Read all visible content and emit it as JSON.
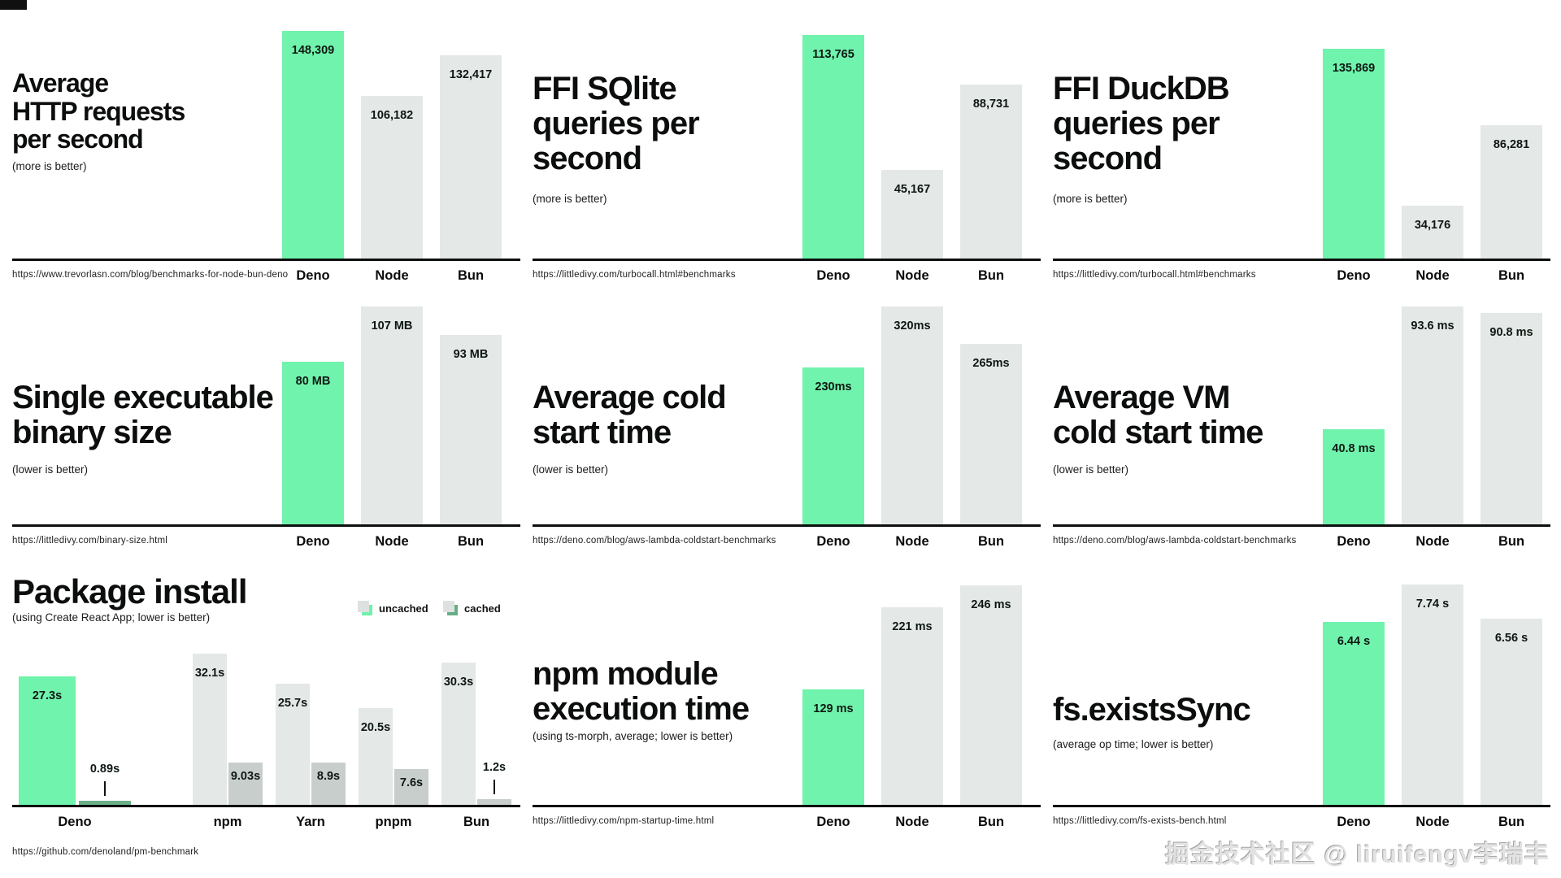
{
  "watermark": "掘金技术社区 @ liruifengv李瑞丰",
  "colors": {
    "accent_green": "#70F3AC",
    "accent_green_dark": "#6AB089",
    "legend_cached_green": "#64AD85",
    "bar_gray": "#E4E8E6",
    "bar_gray_dark": "#C8CECB",
    "axis_black": "#0C0F0D"
  },
  "chart_data": [
    {
      "id": "c1",
      "type": "bar",
      "title_lines": [
        "Average",
        "HTTP requests",
        "per second"
      ],
      "subtitle": "(more is better)",
      "url": "https://www.trevorlasn.com/blog/benchmarks-for-node-bun-deno",
      "categories": [
        "Deno",
        "Node",
        "Bun"
      ],
      "values": [
        148309,
        106182,
        132417
      ],
      "value_labels": [
        "148,309",
        "106,182",
        "132,417"
      ],
      "highlight": "Deno",
      "better": "more",
      "unit": "requests/second"
    },
    {
      "id": "c2",
      "type": "bar",
      "title_lines": [
        "FFI SQlite",
        "queries per",
        "second"
      ],
      "subtitle": "(more is better)",
      "url": "https://littledivy.com/turbocall.html#benchmarks",
      "categories": [
        "Deno",
        "Node",
        "Bun"
      ],
      "values": [
        113765,
        45167,
        88731
      ],
      "value_labels": [
        "113,765",
        "45,167",
        "88,731"
      ],
      "highlight": "Deno",
      "better": "more",
      "unit": "queries/second"
    },
    {
      "id": "c3",
      "type": "bar",
      "title_lines": [
        "FFI DuckDB",
        "queries per",
        "second"
      ],
      "subtitle": "(more is better)",
      "url": "https://littledivy.com/turbocall.html#benchmarks",
      "categories": [
        "Deno",
        "Node",
        "Bun"
      ],
      "values": [
        135869,
        34176,
        86281
      ],
      "value_labels": [
        "135,869",
        "34,176",
        "86,281"
      ],
      "highlight": "Deno",
      "better": "more",
      "unit": "queries/second"
    },
    {
      "id": "c4",
      "type": "bar",
      "title_lines": [
        "Single executable",
        "binary size"
      ],
      "subtitle": "(lower is better)",
      "url": "https://littledivy.com/binary-size.html",
      "categories": [
        "Deno",
        "Node",
        "Bun"
      ],
      "values": [
        80,
        107,
        93
      ],
      "value_labels": [
        "80 MB",
        "107 MB",
        "93 MB"
      ],
      "highlight": "Deno",
      "better": "lower",
      "unit": "MB"
    },
    {
      "id": "c5",
      "type": "bar",
      "title_lines": [
        "Average cold",
        "start time"
      ],
      "subtitle": "(lower is better)",
      "url": "https://deno.com/blog/aws-lambda-coldstart-benchmarks",
      "categories": [
        "Deno",
        "Node",
        "Bun"
      ],
      "values": [
        230,
        320,
        265
      ],
      "value_labels": [
        "230ms",
        "320ms",
        "265ms"
      ],
      "highlight": "Deno",
      "better": "lower",
      "unit": "ms"
    },
    {
      "id": "c6",
      "type": "bar",
      "title_lines": [
        "Average VM",
        "cold start time"
      ],
      "subtitle": "(lower is better)",
      "url": "https://deno.com/blog/aws-lambda-coldstart-benchmarks",
      "categories": [
        "Deno",
        "Node",
        "Bun"
      ],
      "values": [
        40.8,
        93.6,
        90.8
      ],
      "value_labels": [
        "40.8 ms",
        "93.6 ms",
        "90.8 ms"
      ],
      "highlight": "Deno",
      "better": "lower",
      "unit": "ms"
    },
    {
      "id": "c7",
      "type": "bar",
      "grouped": true,
      "title_lines": [
        "Package install"
      ],
      "subtitle": "(using Create React App; lower is better)",
      "url": "https://github.com/denoland/pm-benchmark",
      "legend": [
        "uncached",
        "cached"
      ],
      "categories": [
        "Deno",
        "npm",
        "Yarn",
        "pnpm",
        "Bun"
      ],
      "series": [
        {
          "name": "uncached",
          "values": [
            27.3,
            32.1,
            25.7,
            20.5,
            30.3
          ],
          "value_labels": [
            "27.3s",
            "32.1s",
            "25.7s",
            "20.5s",
            "30.3s"
          ]
        },
        {
          "name": "cached",
          "values": [
            0.89,
            9.03,
            8.9,
            7.6,
            1.2
          ],
          "value_labels": [
            "0.89s",
            "9.03s",
            "8.9s",
            "7.6s",
            "1.2s"
          ]
        }
      ],
      "highlight": "Deno",
      "better": "lower",
      "unit": "s"
    },
    {
      "id": "c8",
      "type": "bar",
      "title_lines": [
        "npm module",
        "execution time"
      ],
      "subtitle": "(using ts-morph, average; lower is better)",
      "url": "https://littledivy.com/npm-startup-time.html",
      "categories": [
        "Deno",
        "Node",
        "Bun"
      ],
      "values": [
        129,
        221,
        246
      ],
      "value_labels": [
        "129 ms",
        "221 ms",
        "246 ms"
      ],
      "highlight": "Deno",
      "better": "lower",
      "unit": "ms"
    },
    {
      "id": "c9",
      "type": "bar",
      "title_lines": [
        "fs.existsSync"
      ],
      "subtitle": "(average op time; lower is better)",
      "url": "https://littledivy.com/fs-exists-bench.html",
      "categories": [
        "Deno",
        "Node",
        "Bun"
      ],
      "values": [
        6.44,
        7.74,
        6.56
      ],
      "value_labels": [
        "6.44 s",
        "7.74 s",
        "6.56 s"
      ],
      "highlight": "Deno",
      "better": "lower",
      "unit": "s"
    }
  ]
}
